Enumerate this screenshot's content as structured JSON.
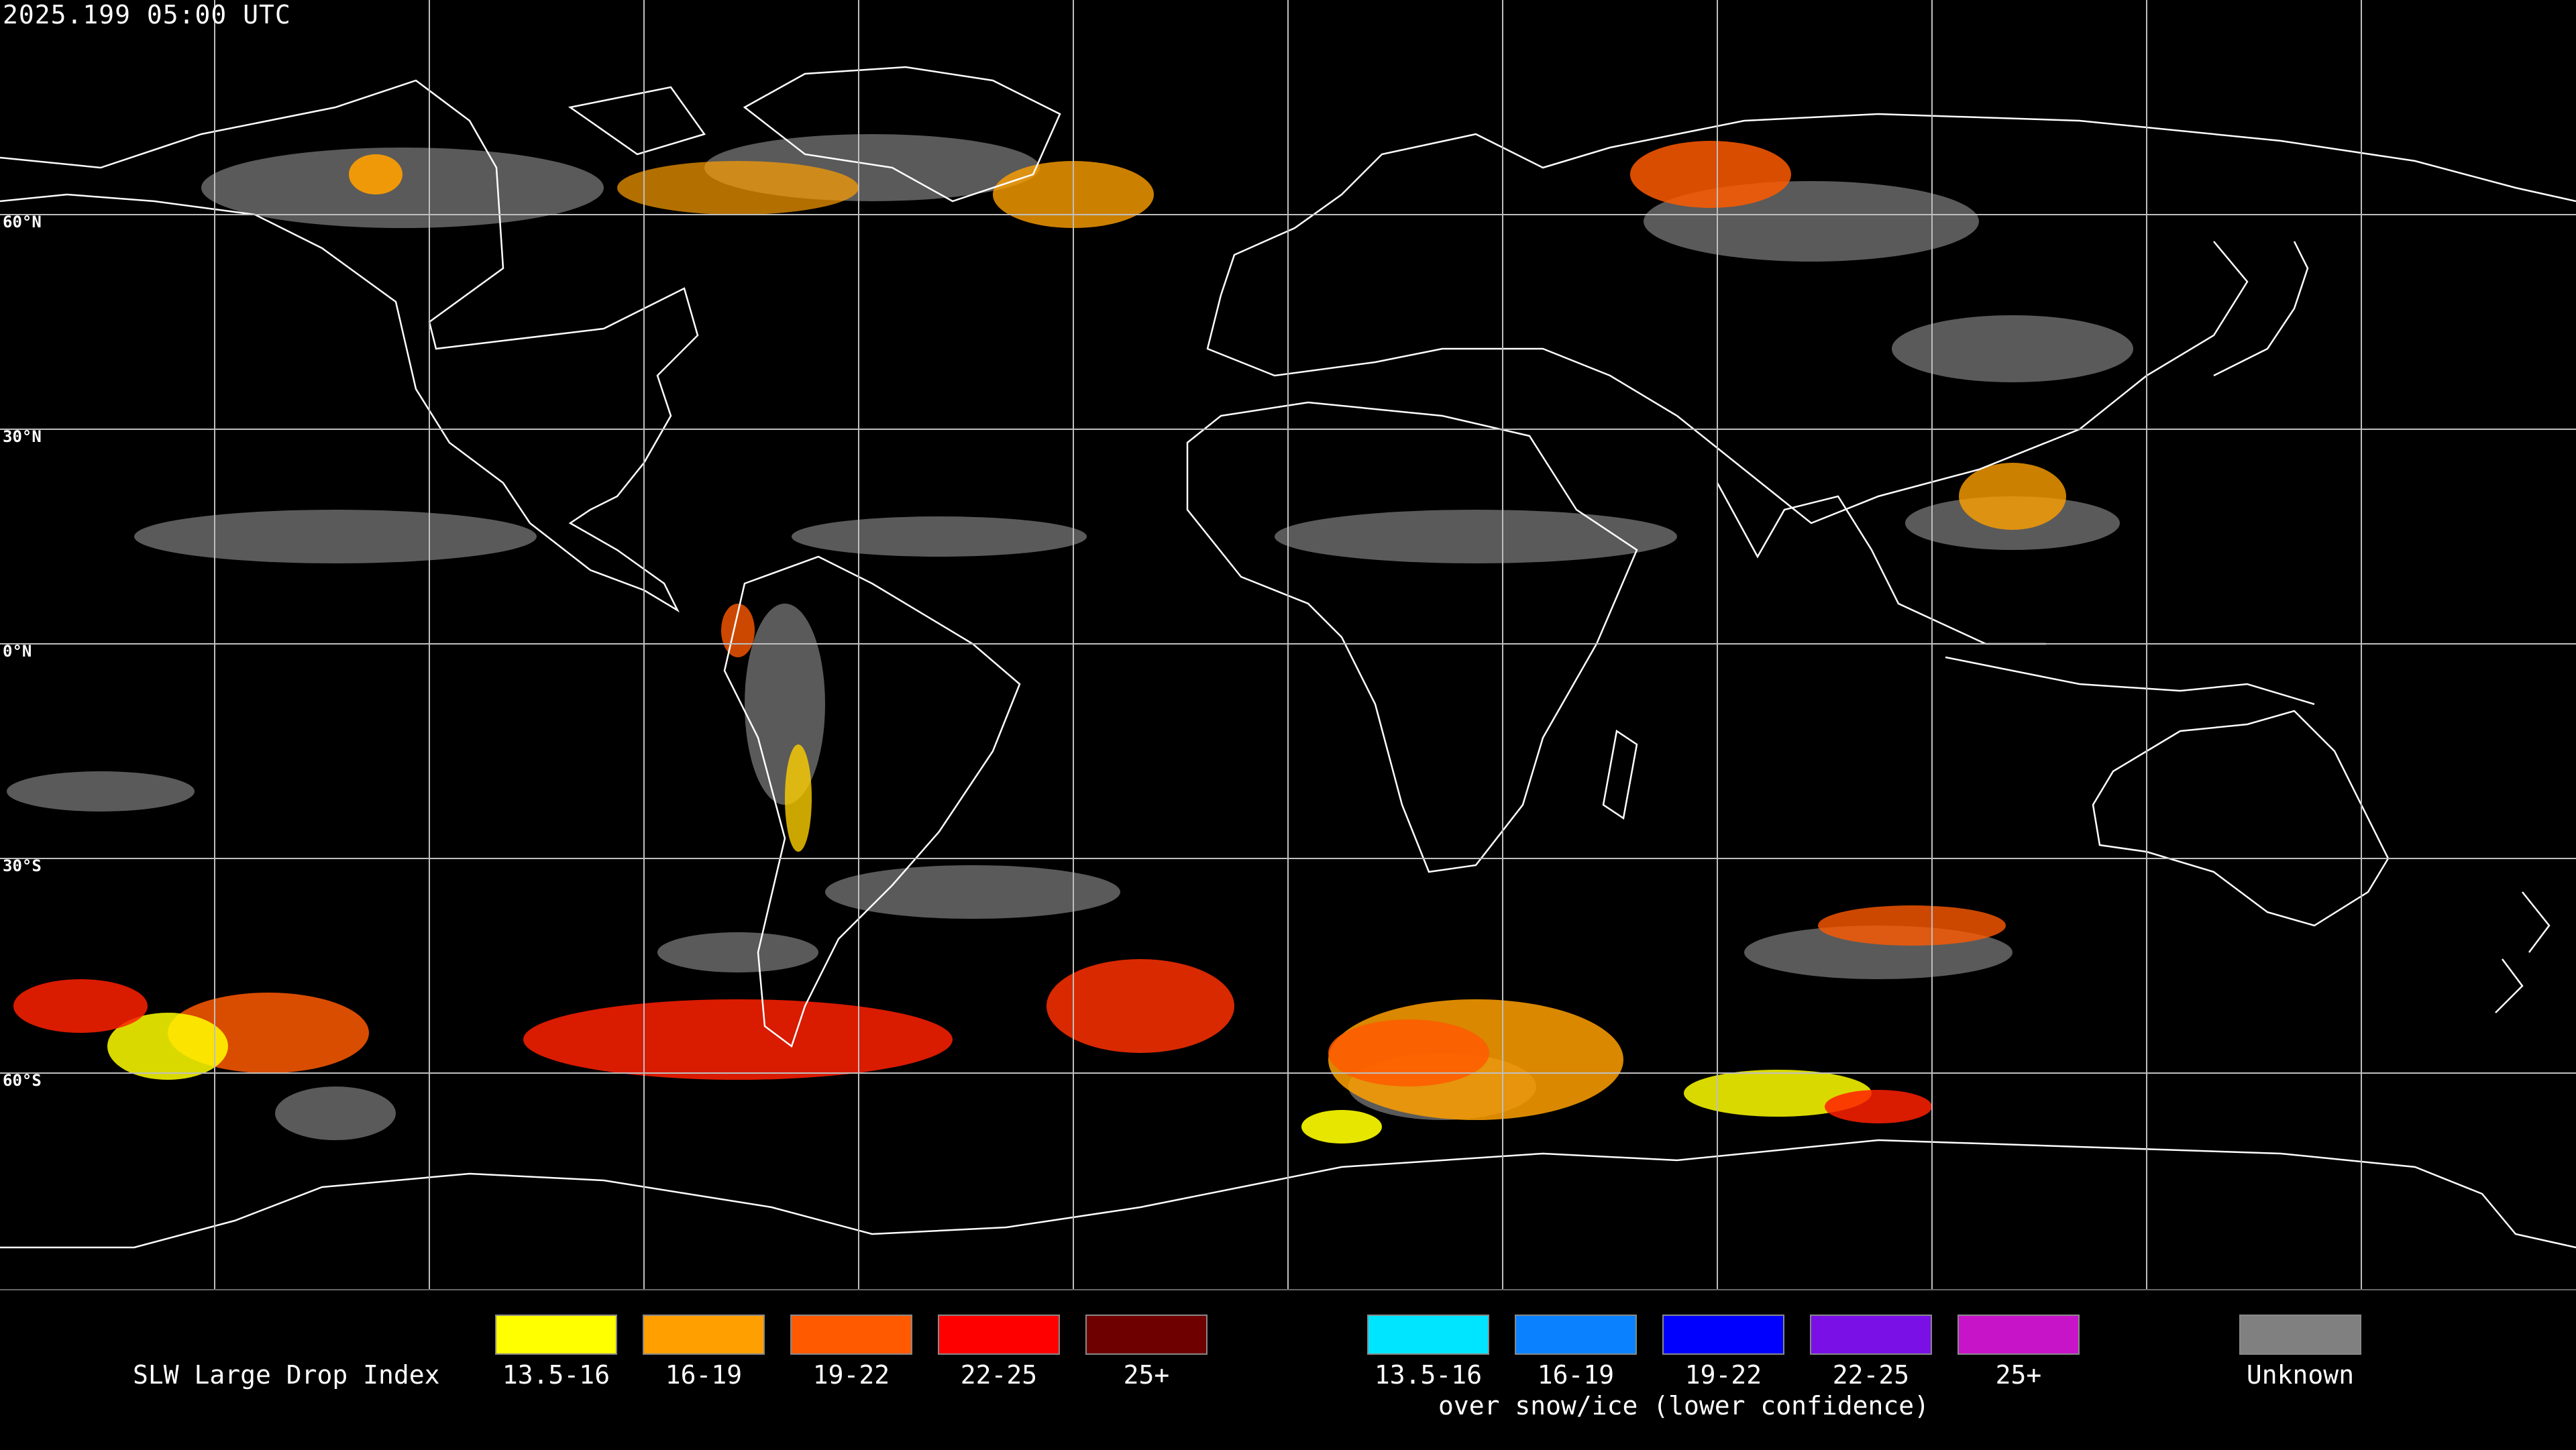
{
  "header": {
    "timestamp": "2025.199 05:00 UTC"
  },
  "map": {
    "projection": "equirectangular",
    "lat_labels": [
      "60°N",
      "30°N",
      "0°N",
      "30°S",
      "60°S"
    ],
    "colors": {
      "background": "#000000",
      "grid": "#bfbfbf",
      "coast": "#ffffff",
      "unknown": "#808080"
    }
  },
  "legend": {
    "title": "SLW Large Drop Index",
    "unknown": {
      "label": "Unknown",
      "color": "#808080"
    },
    "bins": [
      {
        "label": "13.5-16",
        "color": "#ffff00"
      },
      {
        "label": "16-19",
        "color": "#ffa000"
      },
      {
        "label": "19-22",
        "color": "#ff5a00"
      },
      {
        "label": "22-25",
        "color": "#ff0000"
      },
      {
        "label": "25+",
        "color": "#6e0000"
      }
    ],
    "snow_bins": [
      {
        "label": "13.5-16",
        "color": "#00e5ff"
      },
      {
        "label": "16-19",
        "color": "#0a82ff"
      },
      {
        "label": "19-22",
        "color": "#0000ff"
      },
      {
        "label": "22-25",
        "color": "#7a10e6"
      },
      {
        "label": "25+",
        "color": "#c814c8"
      }
    ],
    "snow_note": "over snow/ice (lower confidence)"
  }
}
